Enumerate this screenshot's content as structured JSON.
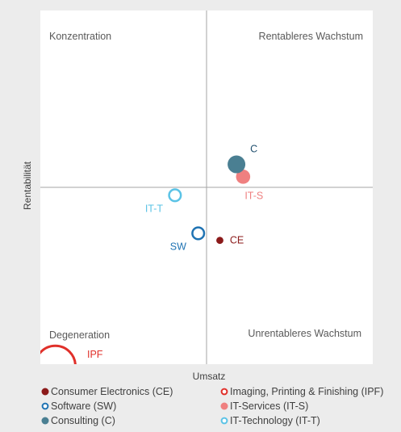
{
  "chart_data": {
    "type": "scatter",
    "title": "",
    "xlabel": "Umsatz",
    "ylabel": "Rentabilität",
    "xlim": [
      -10,
      10
    ],
    "ylim": [
      -10,
      10
    ],
    "grid": false,
    "legend_position": "bottom",
    "quadrants": {
      "top_left": "Konzentration",
      "top_right": "Rentableres Wachstum",
      "bottom_left": "Degeneration",
      "bottom_right": "Unrentableres Wachstum"
    },
    "series": [
      {
        "name": "Consumer Electronics (CE)",
        "label": "CE",
        "x": 0.8,
        "y": -3.0,
        "size": 2,
        "style": "filled",
        "color": "#8b1a1a",
        "label_pos": "right"
      },
      {
        "name": "Imaging, Printing & Finishing (IPF)",
        "label": "IPF",
        "x": -9.1,
        "y": -10.1,
        "size": 12,
        "style": "ring",
        "color": "#e0302a",
        "label_pos": "right-up"
      },
      {
        "name": "Software (SW)",
        "label": "SW",
        "x": -0.5,
        "y": -2.6,
        "size": 4,
        "style": "ring",
        "color": "#1f73b3",
        "label_pos": "left-down"
      },
      {
        "name": "IT-Services (IT-S)",
        "label": "IT-S",
        "x": 2.2,
        "y": 0.6,
        "size": 4,
        "style": "filled",
        "color": "#ef8080",
        "label_pos": "below"
      },
      {
        "name": "Consulting (C)",
        "label": "C",
        "x": 1.8,
        "y": 1.3,
        "size": 5,
        "style": "filled",
        "color": "#4a7f92",
        "label_pos": "right-up"
      },
      {
        "name": "IT-Technology (IT-T)",
        "label": "IT-T",
        "x": -1.9,
        "y": -0.45,
        "size": 4,
        "style": "ring",
        "color": "#5bc3e6",
        "label_pos": "left-down"
      }
    ]
  }
}
